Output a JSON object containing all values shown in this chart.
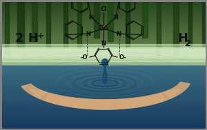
{
  "fig_width": 3.0,
  "fig_height": 1.89,
  "dpi": 100,
  "bg_forest_colors": [
    "#5a8a4a",
    "#78a860",
    "#90bc72",
    "#b0d090",
    "#c8e0a8",
    "#d8ecc0"
  ],
  "bg_water_colors": [
    "#2a5878",
    "#3a6a8a",
    "#4a7a9a",
    "#5a8aaa",
    "#6a9aba"
  ],
  "mist_color": "#d0e8d0",
  "ripple_color_dark": "#1a4a6a",
  "ripple_color_light": "#5a8aaa",
  "arrow_fill": "#d4a87a",
  "arrow_edge": "#c09060",
  "text_2H": "2 H",
  "text_plus": "+",
  "text_H2": "H",
  "text_2": "2",
  "label_fontsize": 13,
  "mol_color": "#111111",
  "border_color": "#888888",
  "water_base": "#3a6a8a",
  "water_drop_color": "#2a5878",
  "tree_colors": [
    "#3a6a2a",
    "#4a7a3a",
    "#5a8a4a",
    "#6a9a5a"
  ]
}
